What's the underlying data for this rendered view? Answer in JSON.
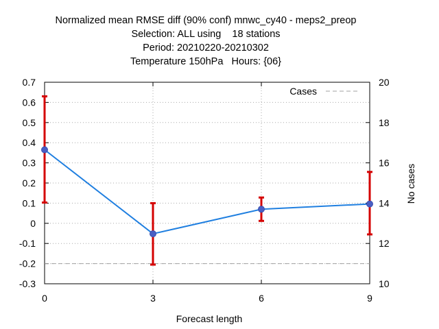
{
  "chart_data": {
    "type": "line",
    "title_lines": [
      "Normalized mean RMSE diff (90% conf) mnwc_cy40 - meps2_preop",
      "Selection: ALL using    18 stations",
      "Period: 20210220-20210302",
      "Temperature 150hPa   Hours: {06}"
    ],
    "xlabel": "Forecast length",
    "ylabel": "",
    "y2label": "No cases",
    "x": [
      0,
      3,
      6,
      9
    ],
    "xlim": [
      0,
      9
    ],
    "ylim": [
      -0.3,
      0.7
    ],
    "y2lim": [
      10,
      20
    ],
    "xticks": [
      0,
      3,
      6,
      9
    ],
    "yticks": [
      -0.3,
      -0.2,
      -0.1,
      0,
      0.1,
      0.2,
      0.3,
      0.4,
      0.5,
      0.6,
      0.7
    ],
    "ytick_labels": [
      "-0.3",
      "-0.2",
      "-0.1",
      "0",
      "0.1",
      "0.2",
      "0.3",
      "0.4",
      "0.5",
      "0.6",
      "0.7"
    ],
    "y2ticks": [
      10,
      12,
      14,
      16,
      18,
      20
    ],
    "grid": true,
    "legend_position": "top-right",
    "series": [
      {
        "name": "",
        "axis": "left",
        "color": "#1f7fe0",
        "marker_color": "#4a5fc4",
        "values": [
          0.365,
          -0.052,
          0.07,
          0.096
        ],
        "error_low": [
          0.103,
          -0.205,
          0.012,
          -0.055
        ],
        "error_high": [
          0.63,
          0.1,
          0.128,
          0.255
        ],
        "error_color": "#d40000"
      },
      {
        "name": "Cases",
        "axis": "right",
        "color": "#a0a0a0",
        "dash": true,
        "values": [
          11,
          11,
          11,
          11
        ]
      }
    ]
  }
}
